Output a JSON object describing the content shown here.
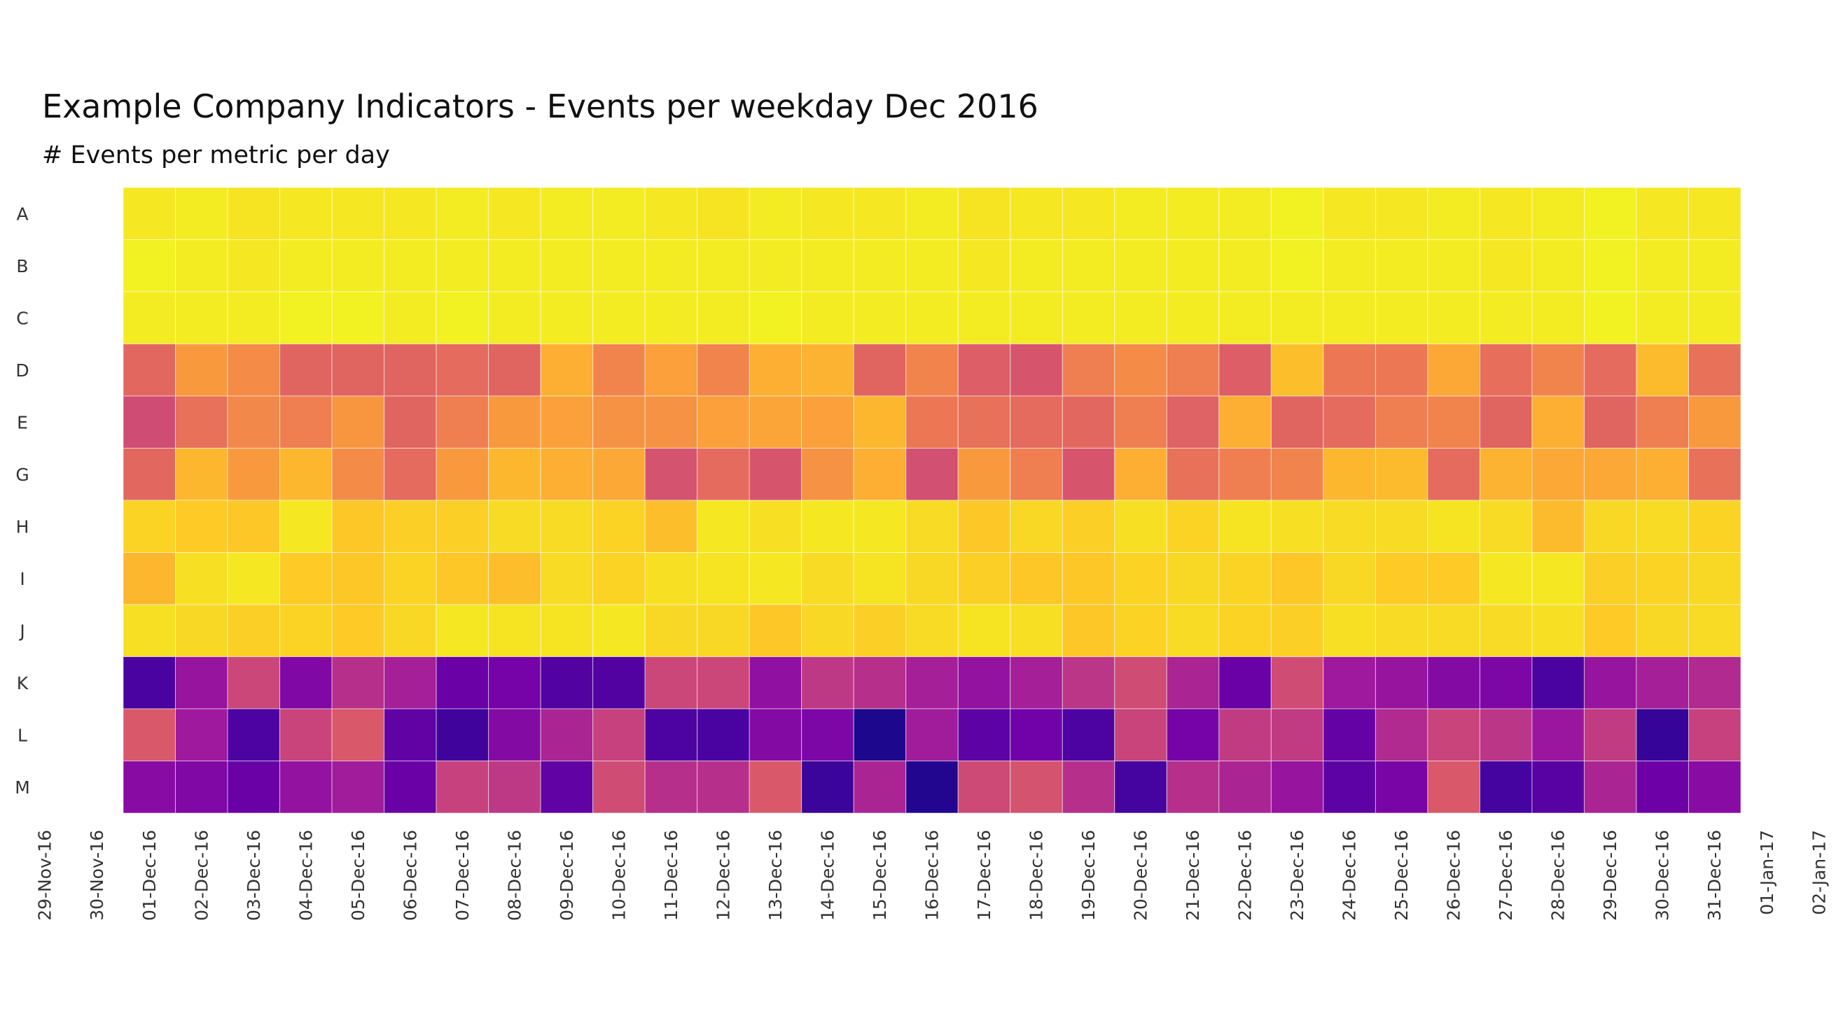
{
  "chart_data": {
    "type": "heatmap",
    "title": "Example Company Indicators - Events per weekday Dec 2016",
    "subtitle": "# Events per metric per day",
    "rows": [
      "A",
      "B",
      "C",
      "D",
      "E",
      "G",
      "H",
      "I",
      "J",
      "K",
      "L",
      "M"
    ],
    "x_tick_labels": [
      "29-Nov-16",
      "30-Nov-16",
      "01-Dec-16",
      "02-Dec-16",
      "03-Dec-16",
      "04-Dec-16",
      "05-Dec-16",
      "06-Dec-16",
      "07-Dec-16",
      "08-Dec-16",
      "09-Dec-16",
      "10-Dec-16",
      "11-Dec-16",
      "12-Dec-16",
      "13-Dec-16",
      "14-Dec-16",
      "15-Dec-16",
      "16-Dec-16",
      "17-Dec-16",
      "18-Dec-16",
      "19-Dec-16",
      "20-Dec-16",
      "21-Dec-16",
      "22-Dec-16",
      "23-Dec-16",
      "24-Dec-16",
      "25-Dec-16",
      "26-Dec-16",
      "27-Dec-16",
      "28-Dec-16",
      "29-Dec-16",
      "30-Dec-16",
      "31-Dec-16",
      "01-Jan-17",
      "02-Jan-17"
    ],
    "x_range": [
      "29-Nov-16",
      "02-Jan-17"
    ],
    "columns": [
      "01-Dec-16",
      "02-Dec-16",
      "03-Dec-16",
      "04-Dec-16",
      "05-Dec-16",
      "06-Dec-16",
      "07-Dec-16",
      "08-Dec-16",
      "09-Dec-16",
      "10-Dec-16",
      "11-Dec-16",
      "12-Dec-16",
      "13-Dec-16",
      "14-Dec-16",
      "15-Dec-16",
      "16-Dec-16",
      "17-Dec-16",
      "18-Dec-16",
      "19-Dec-16",
      "20-Dec-16",
      "21-Dec-16",
      "22-Dec-16",
      "23-Dec-16",
      "24-Dec-16",
      "25-Dec-16",
      "26-Dec-16",
      "27-Dec-16",
      "28-Dec-16",
      "29-Dec-16",
      "30-Dec-16",
      "31-Dec-16"
    ],
    "value_range": [
      0,
      1
    ],
    "colorscale": [
      "#0d0887",
      "#46039f",
      "#7201a8",
      "#9c179e",
      "#bd3786",
      "#d8576b",
      "#ed7953",
      "#fb9f3a",
      "#fdca26",
      "#f0f921"
    ],
    "grid": false,
    "legend": "none",
    "values": [
      [
        0.96,
        0.97,
        0.95,
        0.96,
        0.96,
        0.96,
        0.97,
        0.96,
        0.97,
        0.97,
        0.96,
        0.95,
        0.97,
        0.96,
        0.96,
        0.97,
        0.95,
        0.96,
        0.96,
        0.97,
        0.97,
        0.97,
        0.98,
        0.96,
        0.96,
        0.97,
        0.96,
        0.97,
        0.98,
        0.96,
        0.96
      ],
      [
        0.98,
        0.97,
        0.96,
        0.97,
        0.97,
        0.97,
        0.97,
        0.97,
        0.97,
        0.97,
        0.97,
        0.97,
        0.97,
        0.97,
        0.97,
        0.97,
        0.96,
        0.97,
        0.97,
        0.97,
        0.97,
        0.97,
        0.98,
        0.97,
        0.97,
        0.97,
        0.96,
        0.97,
        0.98,
        0.97,
        0.97
      ],
      [
        0.97,
        0.97,
        0.97,
        0.98,
        0.98,
        0.97,
        0.98,
        0.97,
        0.97,
        0.97,
        0.97,
        0.97,
        0.98,
        0.97,
        0.97,
        0.97,
        0.97,
        0.97,
        0.97,
        0.97,
        0.97,
        0.97,
        0.97,
        0.97,
        0.97,
        0.97,
        0.97,
        0.97,
        0.98,
        0.97,
        0.97
      ],
      [
        0.61,
        0.76,
        0.72,
        0.6,
        0.6,
        0.6,
        0.62,
        0.6,
        0.82,
        0.7,
        0.78,
        0.7,
        0.82,
        0.83,
        0.6,
        0.7,
        0.58,
        0.55,
        0.68,
        0.72,
        0.68,
        0.58,
        0.86,
        0.66,
        0.66,
        0.8,
        0.63,
        0.7,
        0.62,
        0.85,
        0.64
      ],
      [
        0.52,
        0.64,
        0.71,
        0.68,
        0.75,
        0.6,
        0.68,
        0.76,
        0.78,
        0.74,
        0.74,
        0.78,
        0.79,
        0.78,
        0.84,
        0.66,
        0.64,
        0.62,
        0.61,
        0.68,
        0.59,
        0.82,
        0.6,
        0.62,
        0.68,
        0.7,
        0.6,
        0.82,
        0.6,
        0.68,
        0.76
      ],
      [
        0.61,
        0.84,
        0.76,
        0.84,
        0.72,
        0.62,
        0.76,
        0.84,
        0.82,
        0.8,
        0.54,
        0.62,
        0.55,
        0.74,
        0.82,
        0.53,
        0.76,
        0.68,
        0.55,
        0.82,
        0.64,
        0.68,
        0.7,
        0.84,
        0.85,
        0.62,
        0.83,
        0.8,
        0.8,
        0.82,
        0.64
      ],
      [
        0.91,
        0.89,
        0.88,
        0.96,
        0.88,
        0.9,
        0.9,
        0.93,
        0.93,
        0.91,
        0.86,
        0.96,
        0.94,
        0.96,
        0.96,
        0.93,
        0.88,
        0.92,
        0.9,
        0.94,
        0.91,
        0.95,
        0.94,
        0.93,
        0.93,
        0.95,
        0.93,
        0.85,
        0.92,
        0.93,
        0.91
      ],
      [
        0.84,
        0.94,
        0.96,
        0.89,
        0.88,
        0.91,
        0.88,
        0.86,
        0.93,
        0.91,
        0.94,
        0.95,
        0.96,
        0.93,
        0.95,
        0.92,
        0.9,
        0.88,
        0.88,
        0.91,
        0.92,
        0.91,
        0.88,
        0.92,
        0.89,
        0.89,
        0.96,
        0.96,
        0.9,
        0.91,
        0.92
      ],
      [
        0.94,
        0.92,
        0.9,
        0.91,
        0.89,
        0.92,
        0.96,
        0.95,
        0.95,
        0.96,
        0.92,
        0.92,
        0.88,
        0.92,
        0.9,
        0.93,
        0.95,
        0.94,
        0.88,
        0.91,
        0.93,
        0.91,
        0.9,
        0.94,
        0.93,
        0.93,
        0.93,
        0.94,
        0.89,
        0.92,
        0.93
      ],
      [
        0.12,
        0.32,
        0.5,
        0.26,
        0.42,
        0.36,
        0.2,
        0.23,
        0.14,
        0.14,
        0.5,
        0.5,
        0.3,
        0.45,
        0.42,
        0.36,
        0.31,
        0.36,
        0.44,
        0.52,
        0.38,
        0.2,
        0.52,
        0.34,
        0.32,
        0.27,
        0.25,
        0.12,
        0.32,
        0.36,
        0.4
      ],
      [
        0.56,
        0.34,
        0.13,
        0.49,
        0.56,
        0.18,
        0.1,
        0.27,
        0.38,
        0.48,
        0.13,
        0.12,
        0.27,
        0.25,
        0.03,
        0.35,
        0.17,
        0.22,
        0.13,
        0.49,
        0.23,
        0.46,
        0.46,
        0.19,
        0.4,
        0.49,
        0.44,
        0.33,
        0.46,
        0.08,
        0.48
      ],
      [
        0.28,
        0.26,
        0.2,
        0.31,
        0.35,
        0.2,
        0.48,
        0.45,
        0.18,
        0.52,
        0.42,
        0.42,
        0.56,
        0.09,
        0.38,
        0.04,
        0.51,
        0.54,
        0.42,
        0.11,
        0.42,
        0.38,
        0.32,
        0.17,
        0.24,
        0.56,
        0.11,
        0.16,
        0.38,
        0.21,
        0.28
      ]
    ]
  }
}
